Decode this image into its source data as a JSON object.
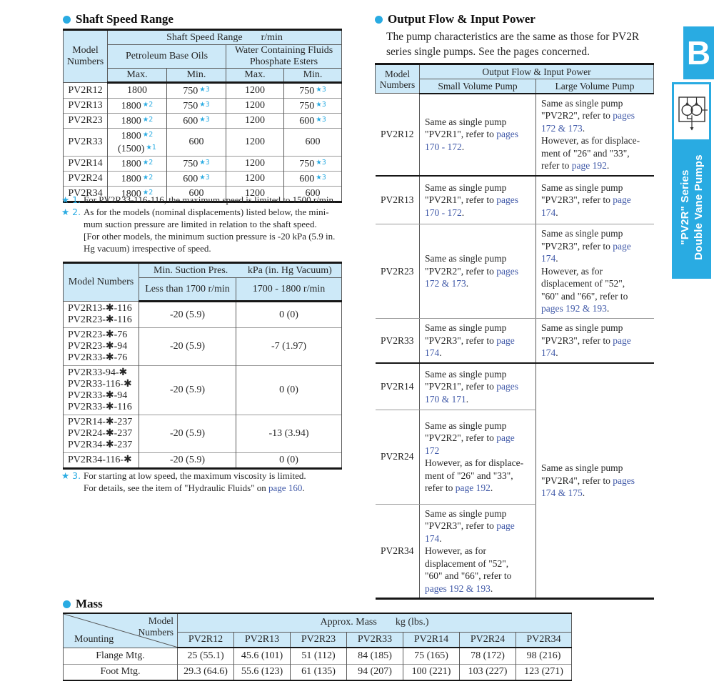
{
  "colors": {
    "accent_cyan": "#29abe2",
    "table_header_blue": "#cde9f8",
    "link_blue": "#4059a8",
    "text": "#262626"
  },
  "side_tab": {
    "letter": "B",
    "line1": "\"PV2R\" Series",
    "line2": "Double Vane Pumps",
    "icon": "double-vane-pump-symbol"
  },
  "shaft_speed": {
    "title": "Shaft Speed Range",
    "header": {
      "model": "Model\nNumbers",
      "range": "Shaft Speed Range",
      "unit": "r/min",
      "petroleum": "Petroleum Base Oils",
      "water": "Water Containing Fluids\nPhosphate Esters",
      "subcols": [
        "Max.",
        "Min.",
        "Max.",
        "Min."
      ]
    },
    "rows": [
      {
        "model": "PV2R12",
        "cells": [
          [
            {
              "v": "1800"
            }
          ],
          [
            {
              "v": "750",
              "s": "3"
            }
          ],
          [
            {
              "v": "1200"
            }
          ],
          [
            {
              "v": "750",
              "s": "3"
            }
          ]
        ]
      },
      {
        "model": "PV2R13",
        "cells": [
          [
            {
              "v": "1800",
              "s": "2"
            }
          ],
          [
            {
              "v": "750",
              "s": "3"
            }
          ],
          [
            {
              "v": "1200"
            }
          ],
          [
            {
              "v": "750",
              "s": "3"
            }
          ]
        ]
      },
      {
        "model": "PV2R23",
        "cells": [
          [
            {
              "v": "1800",
              "s": "2"
            }
          ],
          [
            {
              "v": "600",
              "s": "3"
            }
          ],
          [
            {
              "v": "1200"
            }
          ],
          [
            {
              "v": "600",
              "s": "3"
            }
          ]
        ]
      },
      {
        "model": "PV2R33",
        "cells": [
          [
            {
              "v": "1800",
              "s": "2"
            },
            {
              "v": "(1500)",
              "s": "1"
            }
          ],
          [
            {
              "v": "600"
            }
          ],
          [
            {
              "v": "1200"
            }
          ],
          [
            {
              "v": "600"
            }
          ]
        ]
      },
      {
        "model": "PV2R14",
        "cells": [
          [
            {
              "v": "1800",
              "s": "2"
            }
          ],
          [
            {
              "v": "750",
              "s": "3"
            }
          ],
          [
            {
              "v": "1200"
            }
          ],
          [
            {
              "v": "750",
              "s": "3"
            }
          ]
        ]
      },
      {
        "model": "PV2R24",
        "cells": [
          [
            {
              "v": "1800",
              "s": "2"
            }
          ],
          [
            {
              "v": "600",
              "s": "3"
            }
          ],
          [
            {
              "v": "1200"
            }
          ],
          [
            {
              "v": "600",
              "s": "3"
            }
          ]
        ]
      },
      {
        "model": "PV2R34",
        "cells": [
          [
            {
              "v": "1800",
              "s": "2"
            }
          ],
          [
            {
              "v": "600"
            }
          ],
          [
            {
              "v": "1200"
            }
          ],
          [
            {
              "v": "600"
            }
          ]
        ]
      }
    ]
  },
  "footnotes": [
    {
      "label": "★ 1.",
      "lines": [
        [
          {
            "t": "For PV2R33-116-116, the maximum speed is limited to 1500 r/min."
          }
        ]
      ]
    },
    {
      "label": "★ 2.",
      "lines": [
        [
          {
            "t": "As for the models (nominal displacements) listed below, the mini-"
          }
        ],
        [
          {
            "t": "mum suction pressure are limited in relation to the shaft speed."
          }
        ],
        [
          {
            "t": "[For other models, the minimum suction pressure is -20 kPa (5.9 in."
          }
        ],
        [
          {
            "t": "Hg vacuum) irrespective of speed."
          }
        ]
      ]
    },
    {
      "label": "★ 3.",
      "lines": [
        [
          {
            "t": "For starting at low speed, the maximum viscosity is limited."
          }
        ],
        [
          {
            "t": "For details, see the item of \"Hydraulic Fluids\" on "
          },
          {
            "t": "page 160",
            "l": true
          },
          {
            "t": "."
          }
        ]
      ]
    }
  ],
  "suction": {
    "header": {
      "model": "Model Numbers",
      "t1": "Min. Suction Pres.",
      "t2": "kPa (in. Hg Vacuum)",
      "c1": "Less than 1700 r/min",
      "c2": "1700 - 1800 r/min"
    },
    "rows": [
      {
        "models": [
          "PV2R13-✱-116",
          "PV2R23-✱-116"
        ],
        "v1": "-20 (5.9)",
        "v2": "0 (0)"
      },
      {
        "models": [
          "PV2R23-✱-76",
          "PV2R23-✱-94",
          "PV2R33-✱-76"
        ],
        "v1": "-20 (5.9)",
        "v2": "-7 (1.97)"
      },
      {
        "models": [
          "PV2R33-94-✱",
          "PV2R33-116-✱",
          "PV2R33-✱-94",
          "PV2R33-✱-116"
        ],
        "v1": "-20 (5.9)",
        "v2": "0 (0)"
      },
      {
        "models": [
          "PV2R14-✱-237",
          "PV2R24-✱-237",
          "PV2R34-✱-237"
        ],
        "v1": "-20 (5.9)",
        "v2": "-13 (3.94)"
      },
      {
        "models": [
          "PV2R34-116-✱"
        ],
        "v1": "-20 (5.9)",
        "v2": "0 (0)"
      }
    ]
  },
  "flow": {
    "title": "Output Flow & Input Power",
    "intro": "The pump characteristics are the same as those for PV2R\nseries single pumps.  See the pages concerned.",
    "header": {
      "model": "Model\nNumbers",
      "span": "Output Flow & Input Power",
      "col1": "Small Volume Pump",
      "col2": "Large Volume Pump"
    },
    "rows": [
      {
        "model": "PV2R12",
        "sep": "thick",
        "small": [
          {
            "t": "Same as single pump\n\"PV2R1\", refer to "
          },
          {
            "t": "pages\n170 - 172",
            "l": true
          },
          {
            "t": "."
          }
        ],
        "large": [
          {
            "t": "Same as single pump\n\"PV2R2\", refer to "
          },
          {
            "t": "pages\n172 & 173",
            "l": true
          },
          {
            "t": ".\nHowever, as for displace-\nment of \"26\" and \"33\",\nrefer to "
          },
          {
            "t": "page 192",
            "l": true
          },
          {
            "t": "."
          }
        ]
      },
      {
        "model": "PV2R13",
        "sep": "thin",
        "small": [
          {
            "t": "Same as single pump\n\"PV2R1\", refer to "
          },
          {
            "t": "pages\n170 - 172",
            "l": true
          },
          {
            "t": "."
          }
        ],
        "large": [
          {
            "t": "Same as single pump\n\"PV2R3\", refer to "
          },
          {
            "t": "page\n174",
            "l": true
          },
          {
            "t": "."
          }
        ]
      },
      {
        "model": "PV2R23",
        "sep": "thin",
        "small": [
          {
            "t": "Same as single pump\n\"PV2R2\", refer to "
          },
          {
            "t": "pages\n172 & 173",
            "l": true
          },
          {
            "t": "."
          }
        ],
        "large": [
          {
            "t": "Same as single pump\n\"PV2R3\", refer to "
          },
          {
            "t": "page\n174",
            "l": true
          },
          {
            "t": ".\nHowever, as for\ndisplacement of \"52\",\n\"60\" and \"66\", refer to\n"
          },
          {
            "t": "pages 192 & 193",
            "l": true
          },
          {
            "t": "."
          }
        ]
      },
      {
        "model": "PV2R33",
        "sep": "thick",
        "small": [
          {
            "t": "Same as single pump\n\"PV2R3\", refer to "
          },
          {
            "t": "page\n174",
            "l": true
          },
          {
            "t": "."
          }
        ],
        "large": [
          {
            "t": "Same as single pump\n\"PV2R3\", refer to "
          },
          {
            "t": "page\n174",
            "l": true
          },
          {
            "t": "."
          }
        ]
      },
      {
        "model": "PV2R14",
        "sep": "thin",
        "small": [
          {
            "t": "Same as single pump\n\"PV2R1\", refer to "
          },
          {
            "t": "pages\n170 & 171",
            "l": true
          },
          {
            "t": "."
          }
        ],
        "large_merged": {
          "rowspan": 3,
          "segs": [
            {
              "t": "Same as single pump\n\"PV2R4\", refer to "
            },
            {
              "t": "pages\n174 & 175",
              "l": true
            },
            {
              "t": "."
            }
          ]
        }
      },
      {
        "model": "PV2R24",
        "sep": "thin",
        "small": [
          {
            "t": "Same as single pump\n\"PV2R2\", refer to "
          },
          {
            "t": "page\n172",
            "l": true
          },
          {
            "t": "\nHowever, as for displace-\nment of \"26\" and \"33\",\nrefer to "
          },
          {
            "t": "page 192",
            "l": true
          },
          {
            "t": "."
          }
        ]
      },
      {
        "model": "PV2R34",
        "sep": "none",
        "small": [
          {
            "t": "Same as single pump\n\"PV2R3\", refer to "
          },
          {
            "t": "page\n174",
            "l": true
          },
          {
            "t": ".\nHowever, as for\ndisplacement of \"52\",\n\"60\" and \"66\", refer to\n"
          },
          {
            "t": "pages 192 & 193",
            "l": true
          },
          {
            "t": "."
          }
        ]
      }
    ]
  },
  "mass": {
    "title": "Mass",
    "header": {
      "corner_top": "Model\nNumbers",
      "corner_bottom": "Mounting",
      "span": "Approx. Mass",
      "unit": "kg (lbs.)",
      "models": [
        "PV2R12",
        "PV2R13",
        "PV2R23",
        "PV2R33",
        "PV2R14",
        "PV2R24",
        "PV2R34"
      ]
    },
    "rows": [
      {
        "label": "Flange Mtg.",
        "values": [
          "25 (55.1)",
          "45.6 (101)",
          "51 (112)",
          "84 (185)",
          "75 (165)",
          "78 (172)",
          "98 (216)"
        ]
      },
      {
        "label": "Foot Mtg.",
        "values": [
          "29.3 (64.6)",
          "55.6 (123)",
          "61 (135)",
          "94 (207)",
          "100 (221)",
          "103 (227)",
          "123 (271)"
        ]
      }
    ]
  }
}
